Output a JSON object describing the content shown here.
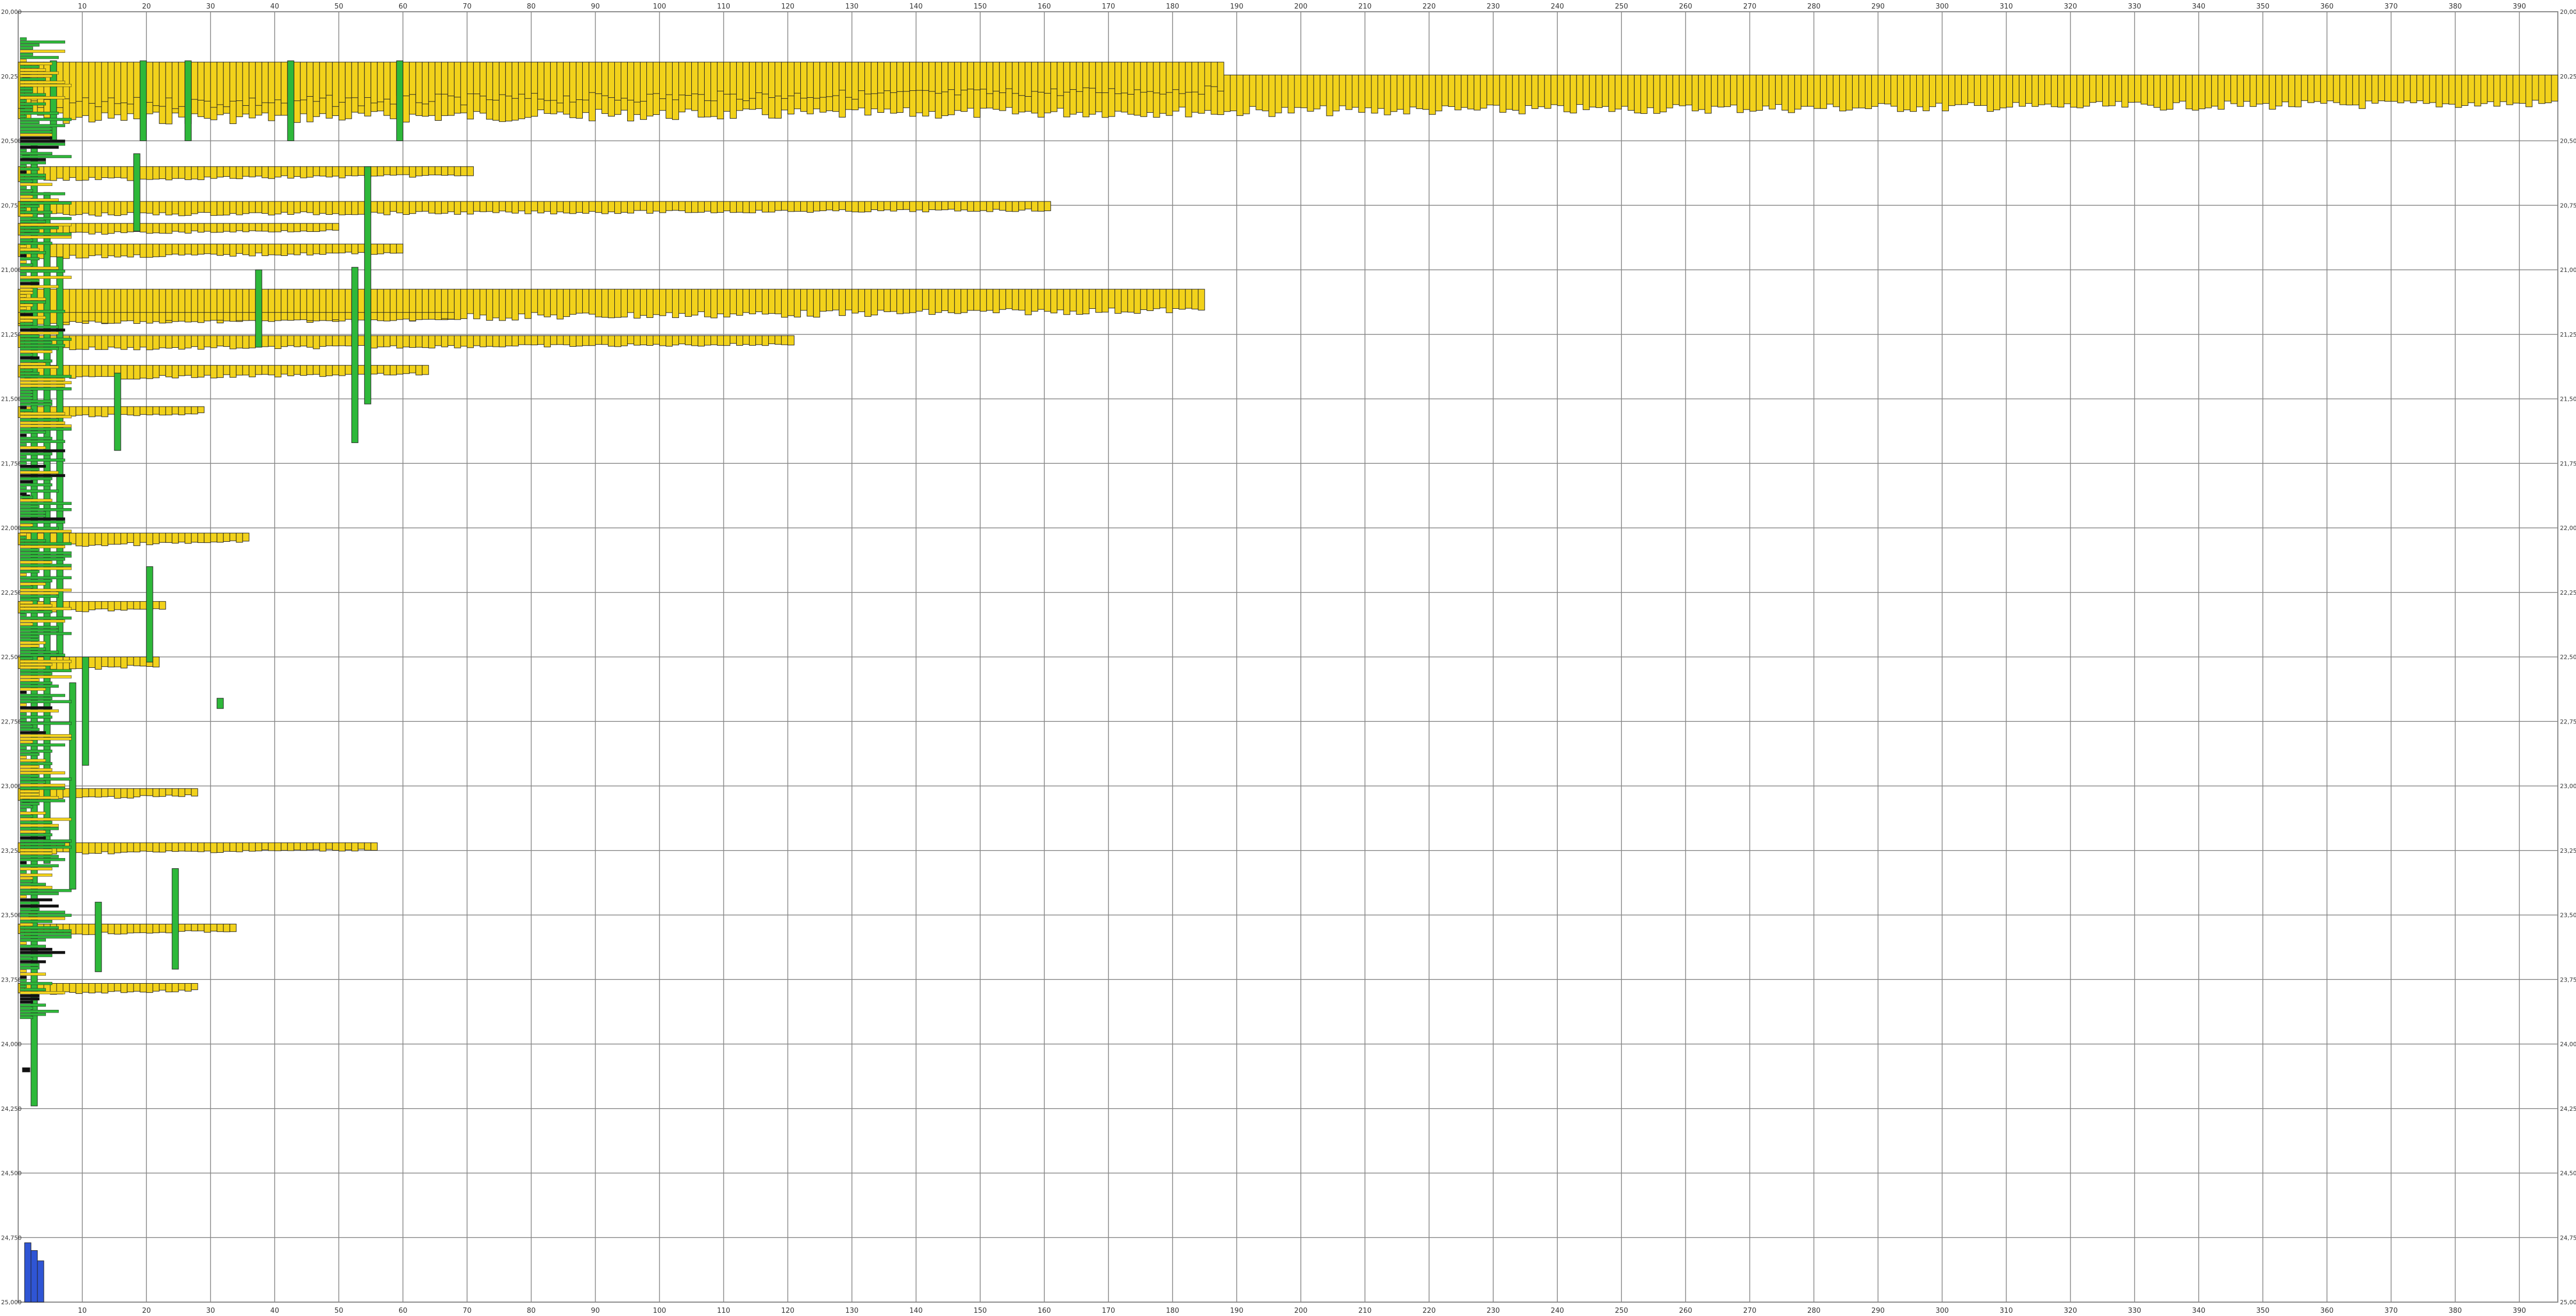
{
  "chart_data": {
    "type": "bar",
    "title": "",
    "xlabel": "",
    "ylabel": "",
    "grid": true,
    "legend": "none",
    "xlim": [
      0,
      396
    ],
    "ylim": [
      20000,
      25000
    ],
    "x_ticks": [
      "10",
      "20",
      "30",
      "40",
      "50",
      "60",
      "70",
      "80",
      "90",
      "100",
      "110",
      "120",
      "130",
      "140",
      "150",
      "160",
      "170",
      "180",
      "190",
      "200",
      "210",
      "220",
      "230",
      "240",
      "250",
      "260",
      "270",
      "280",
      "290",
      "300",
      "310",
      "320",
      "330",
      "340",
      "350",
      "360",
      "370",
      "380",
      "390"
    ],
    "y_ticks": [
      "20,000",
      "20,250",
      "20,500",
      "20,750",
      "21,000",
      "21,250",
      "21,500",
      "21,750",
      "22,000",
      "22,250",
      "22,500",
      "22,750",
      "23,000",
      "23,250",
      "23,500",
      "23,750",
      "24,000",
      "24,250",
      "24,500",
      "24,750",
      "25,000"
    ],
    "colors": {
      "yellow": "#f2d21b",
      "green": "#2eb83a",
      "black": "#111111",
      "blue": "#2f55d4",
      "red": "#d8362b",
      "grid": "#888888",
      "outline": "#222222"
    },
    "series": [
      {
        "color": "yellow",
        "rows": [
          {
            "y": 20245,
            "x_end": 396,
            "h": 82
          },
          {
            "y": 20195,
            "x_end": 188,
            "h": 80
          },
          {
            "y": 21075,
            "x_end": 185,
            "h": 60
          },
          {
            "y": 20735,
            "x_end": 161,
            "h": 25
          },
          {
            "y": 21255,
            "x_end": 121,
            "h": 25
          },
          {
            "y": 20600,
            "x_end": 71,
            "h": 25
          },
          {
            "y": 21370,
            "x_end": 64,
            "h": 25
          },
          {
            "y": 21165,
            "x_end": 68,
            "h": 20
          },
          {
            "y": 23220,
            "x_end": 56,
            "h": 20
          },
          {
            "y": 23010,
            "x_end": 28,
            "h": 20
          },
          {
            "y": 22020,
            "x_end": 36,
            "h": 25
          },
          {
            "y": 22285,
            "x_end": 23,
            "h": 20
          },
          {
            "y": 23535,
            "x_end": 34,
            "h": 20
          },
          {
            "y": 23765,
            "x_end": 28,
            "h": 20
          },
          {
            "y": 21530,
            "x_end": 29,
            "h": 20
          },
          {
            "y": 22500,
            "x_end": 22,
            "h": 25
          },
          {
            "y": 20900,
            "x_end": 60,
            "h": 25
          },
          {
            "y": 20820,
            "x_end": 50,
            "h": 20
          }
        ]
      },
      {
        "color": "green",
        "bars": [
          {
            "x": 2,
            "y0": 20520,
            "y1": 24240
          },
          {
            "x": 4,
            "y0": 20700,
            "y1": 23300
          },
          {
            "x": 6,
            "y0": 20950,
            "y1": 22500
          },
          {
            "x": 8,
            "y0": 22600,
            "y1": 23400
          },
          {
            "x": 10,
            "y0": 22500,
            "y1": 22920
          },
          {
            "x": 12,
            "y0": 23450,
            "y1": 23720
          },
          {
            "x": 15,
            "y0": 21400,
            "y1": 21700
          },
          {
            "x": 18,
            "y0": 20550,
            "y1": 20850
          },
          {
            "x": 20,
            "y0": 22150,
            "y1": 22520
          },
          {
            "x": 24,
            "y0": 23320,
            "y1": 23710
          },
          {
            "x": 31,
            "y0": 22660,
            "y1": 22700
          },
          {
            "x": 37,
            "y0": 21000,
            "y1": 21300
          },
          {
            "x": 52,
            "y0": 20990,
            "y1": 21670
          },
          {
            "x": 54,
            "y0": 20600,
            "y1": 21520
          },
          {
            "x": 5,
            "y0": 20190,
            "y1": 20500
          },
          {
            "x": 19,
            "y0": 20190,
            "y1": 20500
          },
          {
            "x": 26,
            "y0": 20190,
            "y1": 20500
          },
          {
            "x": 42,
            "y0": 20190,
            "y1": 20500
          },
          {
            "x": 59,
            "y0": 20190,
            "y1": 20500
          }
        ]
      },
      {
        "color": "blue",
        "bars": [
          {
            "x": 1,
            "y0": 24770,
            "y1": 25000
          },
          {
            "x": 2,
            "y0": 24800,
            "y1": 25000
          },
          {
            "x": 3,
            "y0": 24840,
            "y1": 25000
          }
        ]
      },
      {
        "color": "black",
        "marks": [
          {
            "x": 1,
            "y": 20250
          },
          {
            "x": 1,
            "y": 20560
          },
          {
            "x": 1,
            "y": 21880
          },
          {
            "x": 1,
            "y": 23060
          },
          {
            "x": 1,
            "y": 24100
          }
        ]
      },
      {
        "color": "red",
        "marks": [
          {
            "x": 2,
            "y": 23500
          }
        ]
      }
    ]
  }
}
